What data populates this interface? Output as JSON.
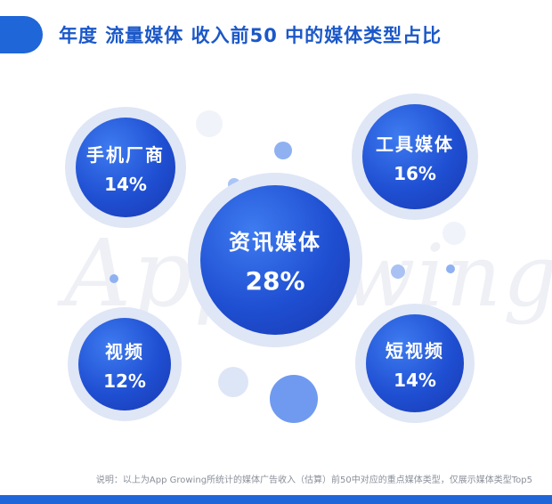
{
  "title": "年度 流量媒体 收入前50 中的媒体类型占比",
  "watermark": {
    "left": "App",
    "right": "wing"
  },
  "chart_data": {
    "type": "bubble",
    "title": "年度 流量媒体 收入前50 中的媒体类型占比",
    "categories": [
      "资讯媒体",
      "手机厂商",
      "工具媒体",
      "视频",
      "短视频"
    ],
    "values": [
      28,
      14,
      16,
      12,
      14
    ],
    "labels": [
      "28%",
      "14%",
      "16%",
      "12%",
      "14%"
    ],
    "unit": "%"
  },
  "footnote": "说明：以上为App Growing所统计的媒体广告收入（估算）前50中对应的重点媒体类型，仅展示媒体类型Top5",
  "colors": {
    "accent": "#1f66d8",
    "title": "#1b58c8",
    "bubble": "#1f4fd2"
  }
}
